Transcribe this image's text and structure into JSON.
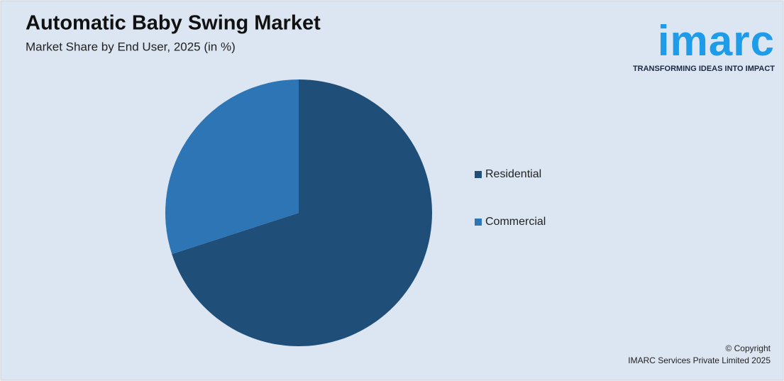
{
  "chart_data": {
    "type": "pie",
    "title": "Automatic Baby Swing Market",
    "subtitle": "Market Share by End User, 2025 (in %)",
    "categories": [
      "Residential",
      "Commercial"
    ],
    "values": [
      70,
      30
    ],
    "colors": [
      "#1f4e79",
      "#2e75b6"
    ],
    "legend": "right"
  },
  "logo": {
    "name": "imarc",
    "tagline": "TRANSFORMING IDEAS INTO IMPACT"
  },
  "footer": {
    "copyright": "© Copyright",
    "company": "IMARC Services Private Limited 2025"
  }
}
